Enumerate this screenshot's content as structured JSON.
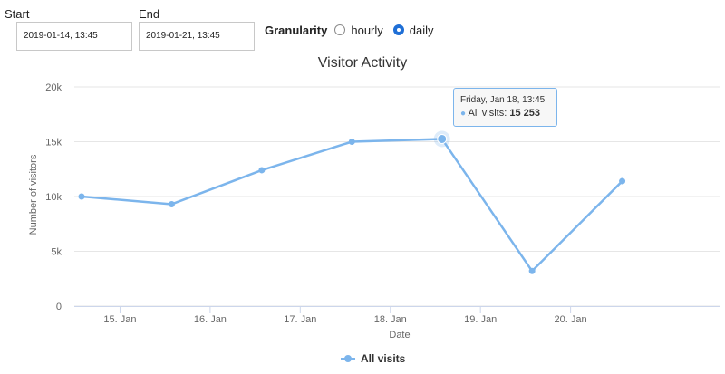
{
  "filters": {
    "start_label": "Start",
    "start_value": "2019-01-14, 13:45",
    "end_label": "End",
    "end_value": "2019-01-21, 13:45",
    "granularity_label": "Granularity",
    "options": [
      "hourly",
      "daily"
    ],
    "selected": "daily"
  },
  "colors": {
    "series": "#7cb5ec",
    "grid": "#e6e6e6",
    "radio_selected": "#1f6fd6"
  },
  "tooltip": {
    "title": "Friday, Jan 18, 13:45",
    "series_label": "All visits:",
    "value_text": "15 253"
  },
  "legend": {
    "label": "All visits"
  },
  "chart_data": {
    "type": "line",
    "title": "Visitor Activity",
    "xlabel": "Date",
    "ylabel": "Number of visitors",
    "ylim": [
      0,
      20000
    ],
    "yticks": [
      0,
      5000,
      10000,
      15000,
      20000
    ],
    "ytick_labels": [
      "0",
      "5k",
      "10k",
      "15k",
      "20k"
    ],
    "xlim": [
      "2019-01-14 13:45",
      "2019-01-21 13:45"
    ],
    "xticks": [
      "2019-01-15",
      "2019-01-16",
      "2019-01-17",
      "2019-01-18",
      "2019-01-19",
      "2019-01-20"
    ],
    "xtick_labels": [
      "15. Jan",
      "16. Jan",
      "17. Jan",
      "18. Jan",
      "19. Jan",
      "20. Jan"
    ],
    "grid": "horizontal",
    "legend_position": "bottom",
    "series": [
      {
        "name": "All visits",
        "x": [
          "2019-01-14 13:45",
          "2019-01-15 13:45",
          "2019-01-16 13:45",
          "2019-01-17 13:45",
          "2019-01-18 13:45",
          "2019-01-19 13:45",
          "2019-01-20 13:45"
        ],
        "values": [
          10000,
          9300,
          12400,
          15000,
          15253,
          3200,
          11400
        ]
      }
    ],
    "highlighted_point": 4
  }
}
